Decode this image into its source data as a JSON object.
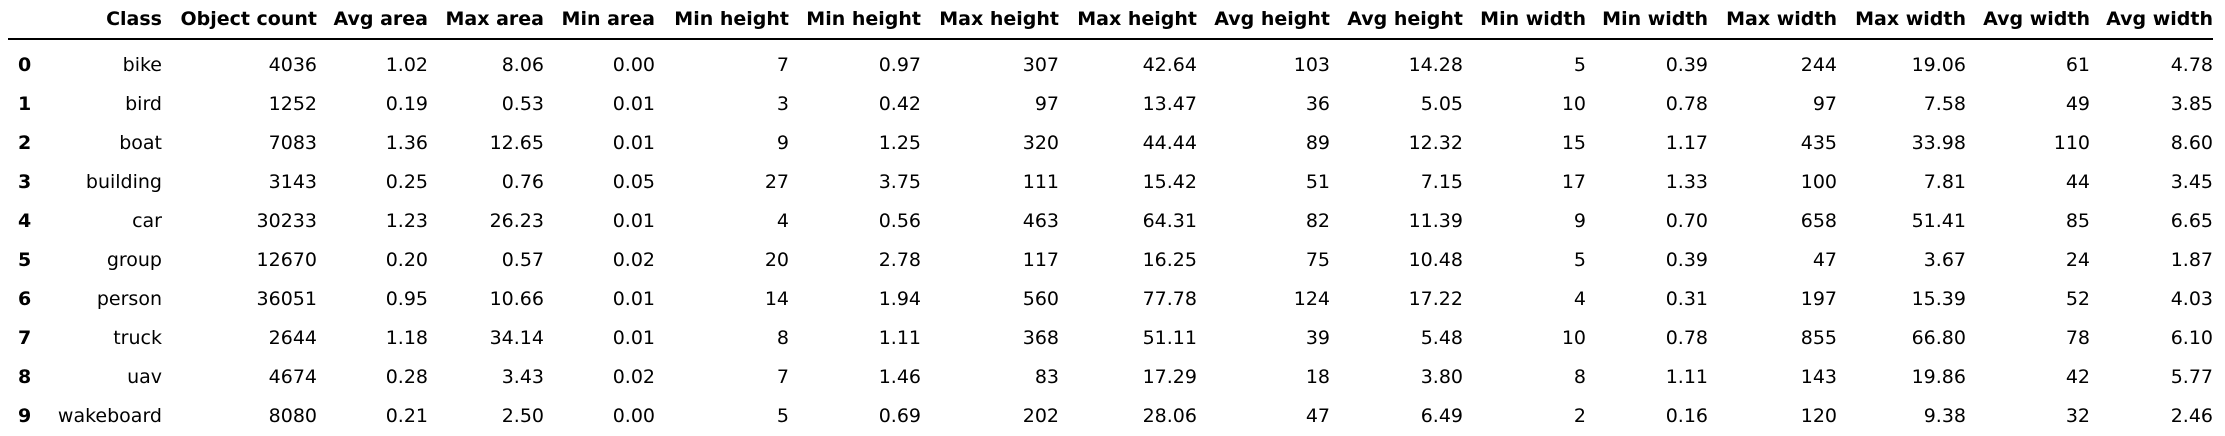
{
  "table": {
    "columns": [
      "",
      "Class",
      "Object count",
      "Avg area",
      "Max area",
      "Min area",
      "Min height",
      "Min height",
      "Max height",
      "Max height",
      "Avg height",
      "Avg height",
      "Min width",
      "Min width",
      "Max width",
      "Max width",
      "Avg width",
      "Avg width"
    ],
    "rows": [
      [
        "0",
        "bike",
        "4036",
        "1.02",
        "8.06",
        "0.00",
        "7",
        "0.97",
        "307",
        "42.64",
        "103",
        "14.28",
        "5",
        "0.39",
        "244",
        "19.06",
        "61",
        "4.78"
      ],
      [
        "1",
        "bird",
        "1252",
        "0.19",
        "0.53",
        "0.01",
        "3",
        "0.42",
        "97",
        "13.47",
        "36",
        "5.05",
        "10",
        "0.78",
        "97",
        "7.58",
        "49",
        "3.85"
      ],
      [
        "2",
        "boat",
        "7083",
        "1.36",
        "12.65",
        "0.01",
        "9",
        "1.25",
        "320",
        "44.44",
        "89",
        "12.32",
        "15",
        "1.17",
        "435",
        "33.98",
        "110",
        "8.60"
      ],
      [
        "3",
        "building",
        "3143",
        "0.25",
        "0.76",
        "0.05",
        "27",
        "3.75",
        "111",
        "15.42",
        "51",
        "7.15",
        "17",
        "1.33",
        "100",
        "7.81",
        "44",
        "3.45"
      ],
      [
        "4",
        "car",
        "30233",
        "1.23",
        "26.23",
        "0.01",
        "4",
        "0.56",
        "463",
        "64.31",
        "82",
        "11.39",
        "9",
        "0.70",
        "658",
        "51.41",
        "85",
        "6.65"
      ],
      [
        "5",
        "group",
        "12670",
        "0.20",
        "0.57",
        "0.02",
        "20",
        "2.78",
        "117",
        "16.25",
        "75",
        "10.48",
        "5",
        "0.39",
        "47",
        "3.67",
        "24",
        "1.87"
      ],
      [
        "6",
        "person",
        "36051",
        "0.95",
        "10.66",
        "0.01",
        "14",
        "1.94",
        "560",
        "77.78",
        "124",
        "17.22",
        "4",
        "0.31",
        "197",
        "15.39",
        "52",
        "4.03"
      ],
      [
        "7",
        "truck",
        "2644",
        "1.18",
        "34.14",
        "0.01",
        "8",
        "1.11",
        "368",
        "51.11",
        "39",
        "5.48",
        "10",
        "0.78",
        "855",
        "66.80",
        "78",
        "6.10"
      ],
      [
        "8",
        "uav",
        "4674",
        "0.28",
        "3.43",
        "0.02",
        "7",
        "1.46",
        "83",
        "17.29",
        "18",
        "3.80",
        "8",
        "1.11",
        "143",
        "19.86",
        "42",
        "5.77"
      ],
      [
        "9",
        "wakeboard",
        "8080",
        "0.21",
        "2.50",
        "0.00",
        "5",
        "0.69",
        "202",
        "28.06",
        "47",
        "6.49",
        "2",
        "0.16",
        "120",
        "9.38",
        "32",
        "2.46"
      ]
    ]
  }
}
